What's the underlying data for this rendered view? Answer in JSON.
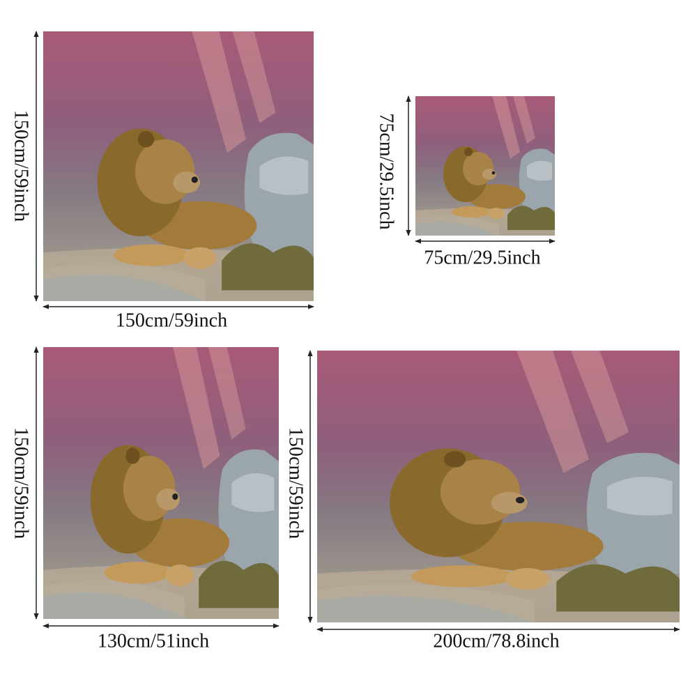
{
  "panels": [
    {
      "width_label": "150cm/59inch",
      "height_label": "150cm/59inch"
    },
    {
      "width_label": "75cm/29.5inch",
      "height_label": "75cm/29.5inch"
    },
    {
      "width_label": "130cm/51inch",
      "height_label": "150cm/59inch"
    },
    {
      "width_label": "200cm/78.8inch",
      "height_label": "150cm/59inch"
    }
  ]
}
